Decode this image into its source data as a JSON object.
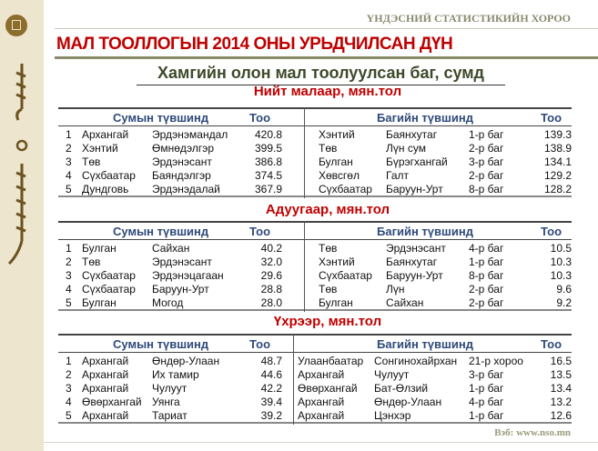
{
  "header": {
    "org": "ҮНДЭСНИЙ СТАТИСТИКИЙН ХОРОО",
    "title": "МАЛ ТООЛЛОГЫН 2014 ОНЫ УРЬДЧИЛСАН ДҮН",
    "subtitle": "Хамгийн олон мал тоолуулсан баг, сумд"
  },
  "colors": {
    "title": "#c00000",
    "header": "#2f4a7a",
    "sidebar": "#ede5cd"
  },
  "tables": [
    {
      "section": "Нийт малаар, мян.тол",
      "left_header": "Сумын түвшинд",
      "left_count": "Тоо",
      "right_header": "Багийн түвшинд",
      "right_count": "Тоо",
      "rows": [
        {
          "n": "1",
          "aimag": "Архангай",
          "sum": "Эрдэнэмандал",
          "value": "420.8",
          "r_aimag": "Хэнтий",
          "r_sum": "Баянхутаг",
          "r_bag": "1-р баг",
          "r_value": "139.3"
        },
        {
          "n": "2",
          "aimag": "Хэнтий",
          "sum": "Өмнөдэлгэр",
          "value": "399.5",
          "r_aimag": "Төв",
          "r_sum": "Лүн сум",
          "r_bag": "2-р баг",
          "r_value": "138.9"
        },
        {
          "n": "3",
          "aimag": "Төв",
          "sum": "Эрдэнэсант",
          "value": "386.8",
          "r_aimag": "Булган",
          "r_sum": "Бүрэгхангай",
          "r_bag": "3-р баг",
          "r_value": "134.1"
        },
        {
          "n": "4",
          "aimag": "Сүхбаатар",
          "sum": "Баяндэлгэр",
          "value": "374.5",
          "r_aimag": "Хөвсгөл",
          "r_sum": "Галт",
          "r_bag": "2-р баг",
          "r_value": "129.2"
        },
        {
          "n": "5",
          "aimag": "Дундговь",
          "sum": "Эрдэнэдалай",
          "value": "367.9",
          "r_aimag": "Сүхбаатар",
          "r_sum": "Баруун-Урт",
          "r_bag": "8-р баг",
          "r_value": "128.2"
        }
      ]
    },
    {
      "section": "Адуугаар, мян.тол",
      "left_header": "Сумын түвшинд",
      "left_count": "Тоо",
      "right_header": "Багийн түвшинд",
      "right_count": "Тоо",
      "rows": [
        {
          "n": "1",
          "aimag": "Булган",
          "sum": "Сайхан",
          "value": "40.2",
          "r_aimag": "Төв",
          "r_sum": "Эрдэнэсант",
          "r_bag": "4-р баг",
          "r_value": "10.5"
        },
        {
          "n": "2",
          "aimag": "Төв",
          "sum": "Эрдэнэсант",
          "value": "32.0",
          "r_aimag": "Хэнтий",
          "r_sum": "Баянхутаг",
          "r_bag": "1-р баг",
          "r_value": "10.3"
        },
        {
          "n": "3",
          "aimag": "Сүхбаатар",
          "sum": "Эрдэнэцагаан",
          "value": "29.6",
          "r_aimag": "Сүхбаатар",
          "r_sum": "Баруун-Урт",
          "r_bag": "8-р баг",
          "r_value": "10.3"
        },
        {
          "n": "4",
          "aimag": "Сүхбаатар",
          "sum": "Баруун-Урт",
          "value": "28.8",
          "r_aimag": "Төв",
          "r_sum": "Лүн",
          "r_bag": "2-р баг",
          "r_value": "9.6"
        },
        {
          "n": "5",
          "aimag": "Булган",
          "sum": "Могод",
          "value": "28.0",
          "r_aimag": "Булган",
          "r_sum": "Сайхан",
          "r_bag": "2-р баг",
          "r_value": "9.2"
        }
      ]
    },
    {
      "section": "Үхрээр, мян.тол",
      "left_header": "Сумын түвшинд",
      "left_count": "Тоо",
      "right_header": "Багийн түвшинд",
      "right_count": "Тоо",
      "rows": [
        {
          "n": "1",
          "aimag": "Архангай",
          "sum": "Өндөр-Улаан",
          "value": "48.7",
          "r_aimag": "Улаанбаатар",
          "r_sum": "Сонгинохайрхан",
          "r_bag": "21-р хороо",
          "r_value": "16.5"
        },
        {
          "n": "2",
          "aimag": "Архангай",
          "sum": "Их тамир",
          "value": "44.6",
          "r_aimag": "Архангай",
          "r_sum": "Чулуут",
          "r_bag": "3-р баг",
          "r_value": "13.5"
        },
        {
          "n": "3",
          "aimag": "Архангай",
          "sum": "Чулуут",
          "value": "42.2",
          "r_aimag": "Өвөрхангай",
          "r_sum": "Бат-Өлзий",
          "r_bag": "1-р баг",
          "r_value": "13.4"
        },
        {
          "n": "4",
          "aimag": "Өвөрхангай",
          "sum": "Уянга",
          "value": "39.4",
          "r_aimag": "Архангай",
          "r_sum": "Өндөр-Улаан",
          "r_bag": "4-р баг",
          "r_value": "13.2"
        },
        {
          "n": "5",
          "aimag": "Архангай",
          "sum": "Тариат",
          "value": "39.2",
          "r_aimag": "Архангай",
          "r_sum": "Цэнхэр",
          "r_bag": "1-р баг",
          "r_value": "12.6"
        }
      ]
    }
  ],
  "footer": {
    "web": "Вэб: www.nso.mn"
  }
}
